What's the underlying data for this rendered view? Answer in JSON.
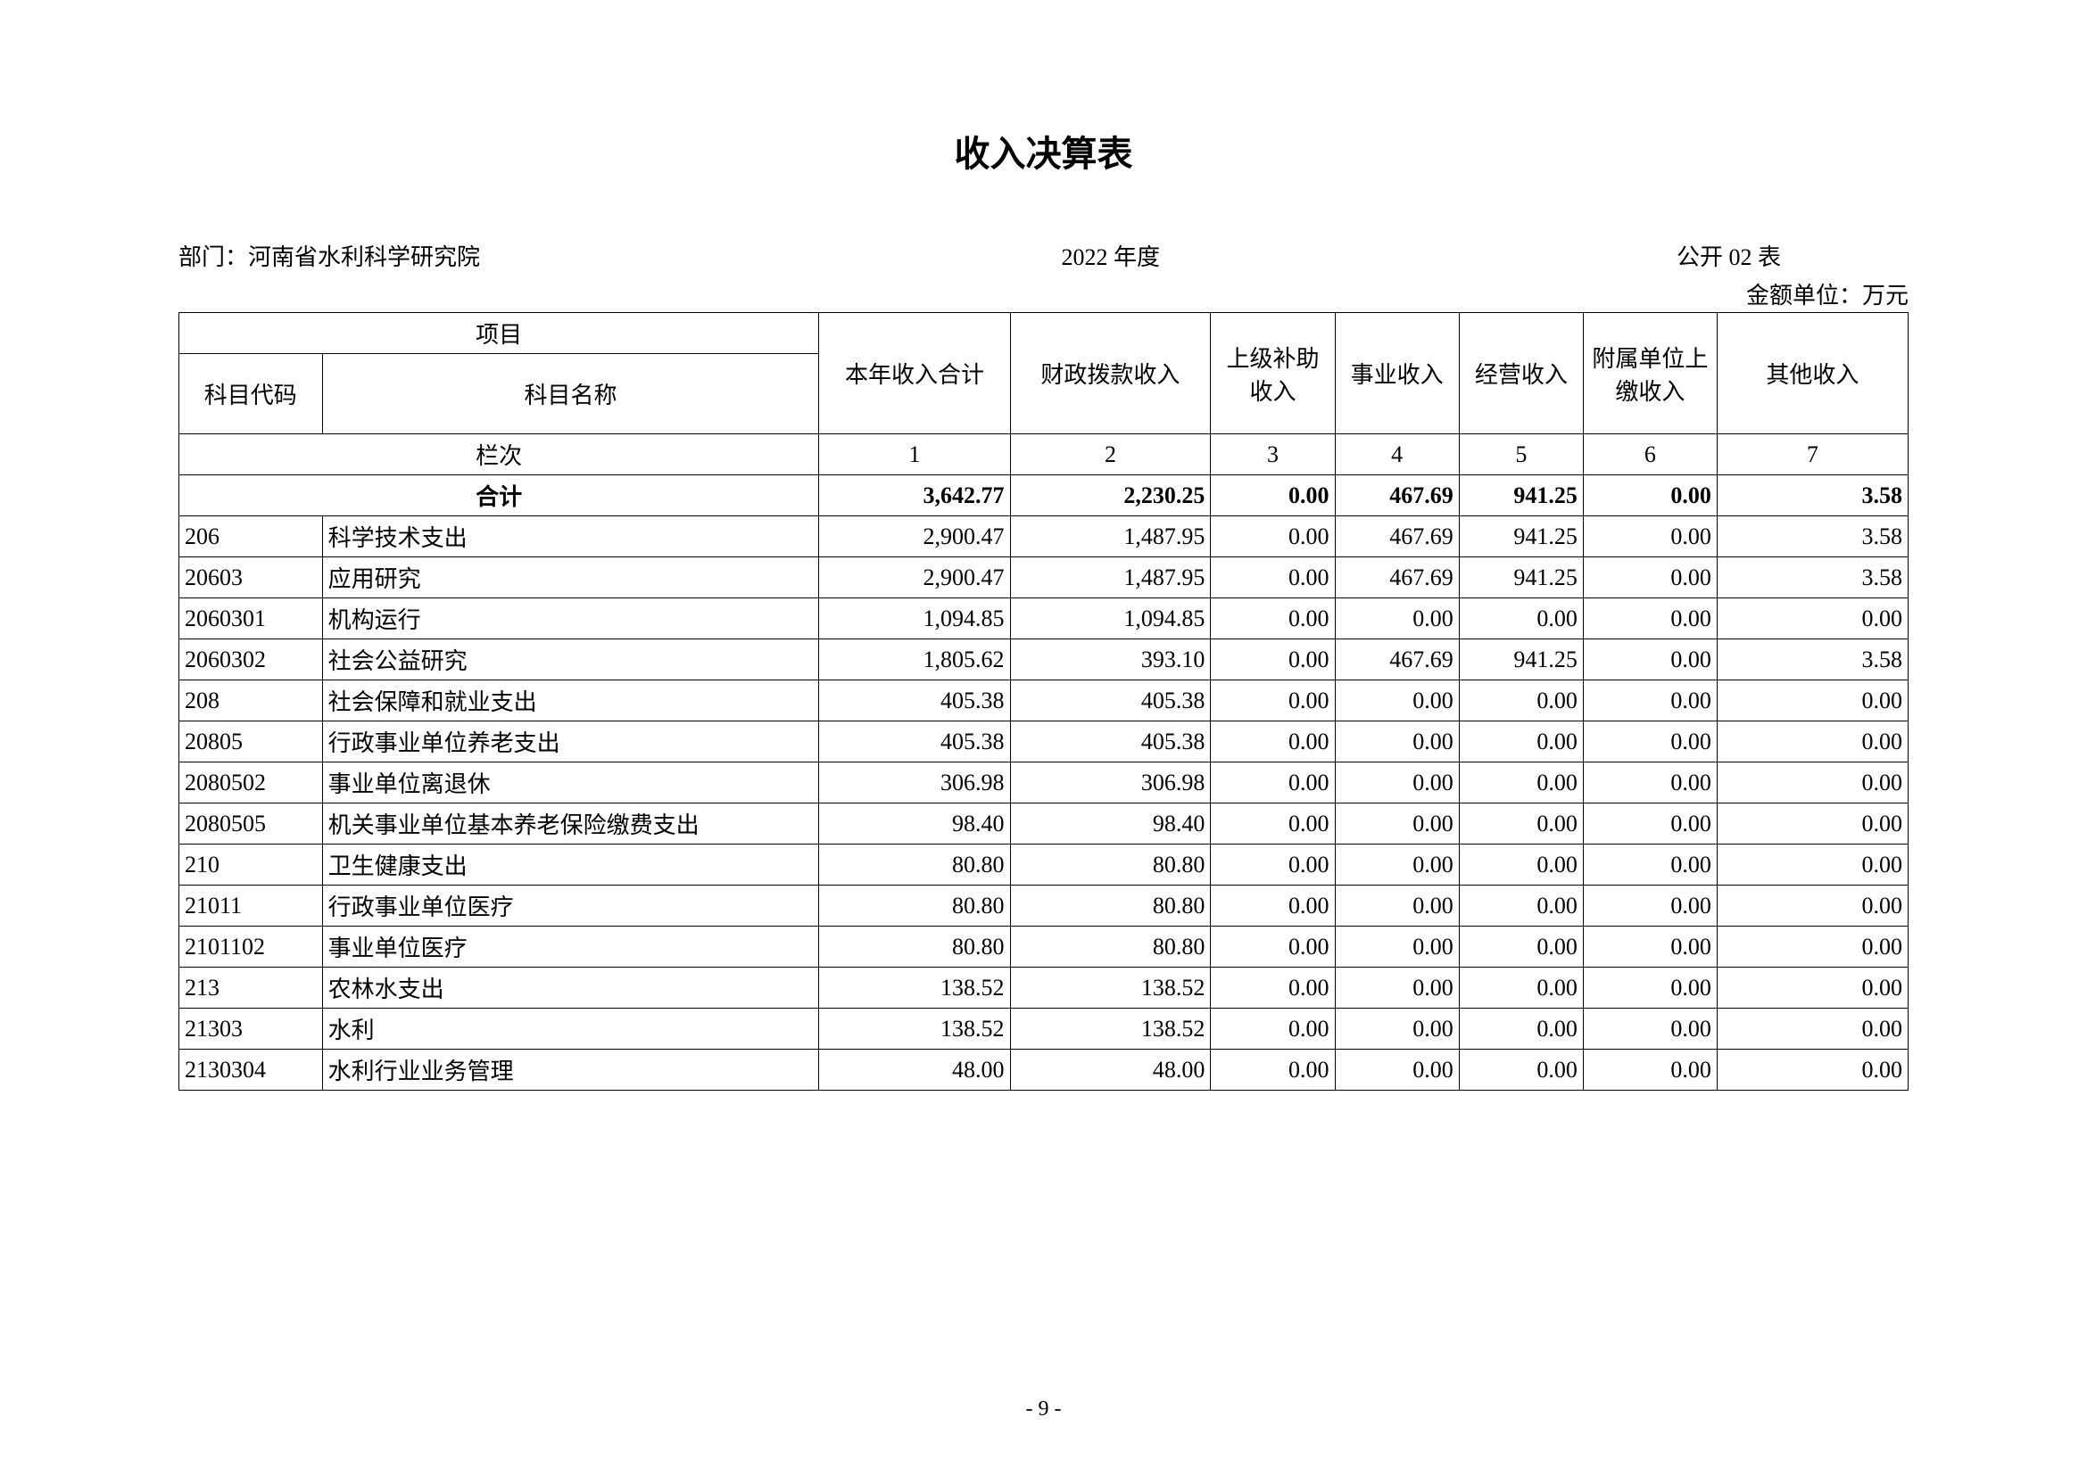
{
  "title": "收入决算表",
  "meta": {
    "dept_label": "部门：",
    "dept_name": "河南省水利科学研究院",
    "year": "2022 年度",
    "form_no": "公开 02 表",
    "unit": "金额单位：万元"
  },
  "table": {
    "type": "table",
    "columns": {
      "project_group": "项目",
      "code": "科目代码",
      "name": "科目名称",
      "c1": "本年收入合计",
      "c2": "财政拨款收入",
      "c3": "上级补助收入",
      "c4": "事业收入",
      "c5": "经营收入",
      "c6": "附属单位上缴收入",
      "c7": "其他收入",
      "lanci": "栏次",
      "heji": "合计"
    },
    "col_numbers": [
      "1",
      "2",
      "3",
      "4",
      "5",
      "6",
      "7"
    ],
    "total_row": [
      "3,642.77",
      "2,230.25",
      "0.00",
      "467.69",
      "941.25",
      "0.00",
      "3.58"
    ],
    "rows": [
      {
        "code": "206",
        "name": "科学技术支出",
        "v": [
          "2,900.47",
          "1,487.95",
          "0.00",
          "467.69",
          "941.25",
          "0.00",
          "3.58"
        ]
      },
      {
        "code": "20603",
        "name": "应用研究",
        "v": [
          "2,900.47",
          "1,487.95",
          "0.00",
          "467.69",
          "941.25",
          "0.00",
          "3.58"
        ]
      },
      {
        "code": "2060301",
        "name": "机构运行",
        "v": [
          "1,094.85",
          "1,094.85",
          "0.00",
          "0.00",
          "0.00",
          "0.00",
          "0.00"
        ]
      },
      {
        "code": "2060302",
        "name": "社会公益研究",
        "v": [
          "1,805.62",
          "393.10",
          "0.00",
          "467.69",
          "941.25",
          "0.00",
          "3.58"
        ]
      },
      {
        "code": "208",
        "name": "社会保障和就业支出",
        "v": [
          "405.38",
          "405.38",
          "0.00",
          "0.00",
          "0.00",
          "0.00",
          "0.00"
        ]
      },
      {
        "code": "20805",
        "name": "行政事业单位养老支出",
        "v": [
          "405.38",
          "405.38",
          "0.00",
          "0.00",
          "0.00",
          "0.00",
          "0.00"
        ]
      },
      {
        "code": "2080502",
        "name": "事业单位离退休",
        "v": [
          "306.98",
          "306.98",
          "0.00",
          "0.00",
          "0.00",
          "0.00",
          "0.00"
        ]
      },
      {
        "code": "2080505",
        "name": "机关事业单位基本养老保险缴费支出",
        "v": [
          "98.40",
          "98.40",
          "0.00",
          "0.00",
          "0.00",
          "0.00",
          "0.00"
        ]
      },
      {
        "code": "210",
        "name": "卫生健康支出",
        "v": [
          "80.80",
          "80.80",
          "0.00",
          "0.00",
          "0.00",
          "0.00",
          "0.00"
        ]
      },
      {
        "code": "21011",
        "name": "行政事业单位医疗",
        "v": [
          "80.80",
          "80.80",
          "0.00",
          "0.00",
          "0.00",
          "0.00",
          "0.00"
        ]
      },
      {
        "code": "2101102",
        "name": "事业单位医疗",
        "v": [
          "80.80",
          "80.80",
          "0.00",
          "0.00",
          "0.00",
          "0.00",
          "0.00"
        ]
      },
      {
        "code": "213",
        "name": "农林水支出",
        "v": [
          "138.52",
          "138.52",
          "0.00",
          "0.00",
          "0.00",
          "0.00",
          "0.00"
        ]
      },
      {
        "code": "21303",
        "name": "水利",
        "v": [
          "138.52",
          "138.52",
          "0.00",
          "0.00",
          "0.00",
          "0.00",
          "0.00"
        ]
      },
      {
        "code": "2130304",
        "name": "水利行业业务管理",
        "v": [
          "48.00",
          "48.00",
          "0.00",
          "0.00",
          "0.00",
          "0.00",
          "0.00"
        ]
      }
    ]
  },
  "page_number": "- 9 -"
}
